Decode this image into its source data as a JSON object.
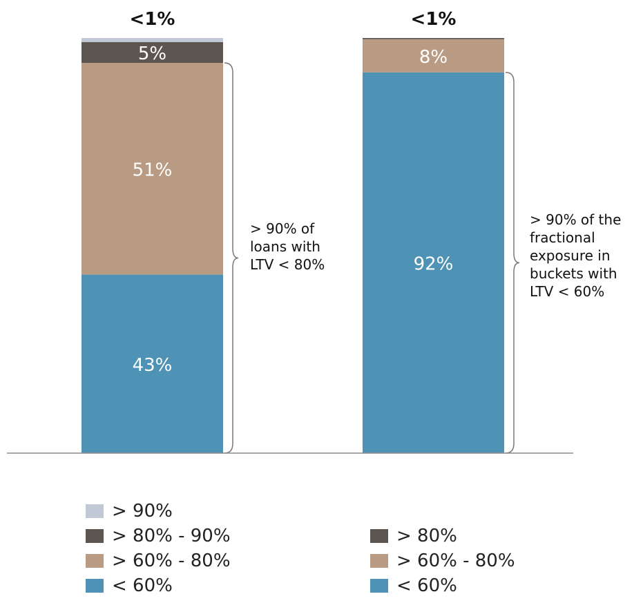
{
  "chart_data": {
    "type": "bar",
    "stacked": true,
    "colors": {
      "gt90": "#c1c8d6",
      "gt80": "#5d5650",
      "gt60": "#b89b82",
      "lt60": "#4e93b5"
    },
    "bars": [
      {
        "top_label": "<1%",
        "segments": [
          {
            "key": "lt60",
            "value": 43,
            "label": "43%"
          },
          {
            "key": "gt60",
            "value": 51,
            "label": "51%"
          },
          {
            "key": "gt80",
            "value": 5,
            "label": "5%"
          },
          {
            "key": "gt90",
            "value": 1,
            "label": ""
          }
        ],
        "annotation_lines": [
          "> 90% of",
          "loans with",
          "LTV < 80%"
        ]
      },
      {
        "top_label": "<1%",
        "segments": [
          {
            "key": "lt60",
            "value": 92,
            "label": "92%"
          },
          {
            "key": "gt60",
            "value": 8,
            "label": "8%"
          },
          {
            "key": "gt80",
            "value": 0.3,
            "label": ""
          }
        ],
        "annotation_lines": [
          "> 90% of the",
          "fractional",
          "exposure in",
          "buckets with",
          "LTV < 60%"
        ]
      }
    ],
    "legends": [
      [
        {
          "key": "gt90",
          "label": "> 90%"
        },
        {
          "key": "gt80",
          "label": "> 80% - 90%"
        },
        {
          "key": "gt60",
          "label": "> 60% - 80%"
        },
        {
          "key": "lt60",
          "label": "< 60%"
        }
      ],
      [
        {
          "key": "gt80",
          "label": "> 80%"
        },
        {
          "key": "gt60",
          "label": "> 60% - 80%"
        },
        {
          "key": "lt60",
          "label": "< 60%"
        }
      ]
    ],
    "ylim": [
      0,
      100
    ],
    "grid": false
  }
}
